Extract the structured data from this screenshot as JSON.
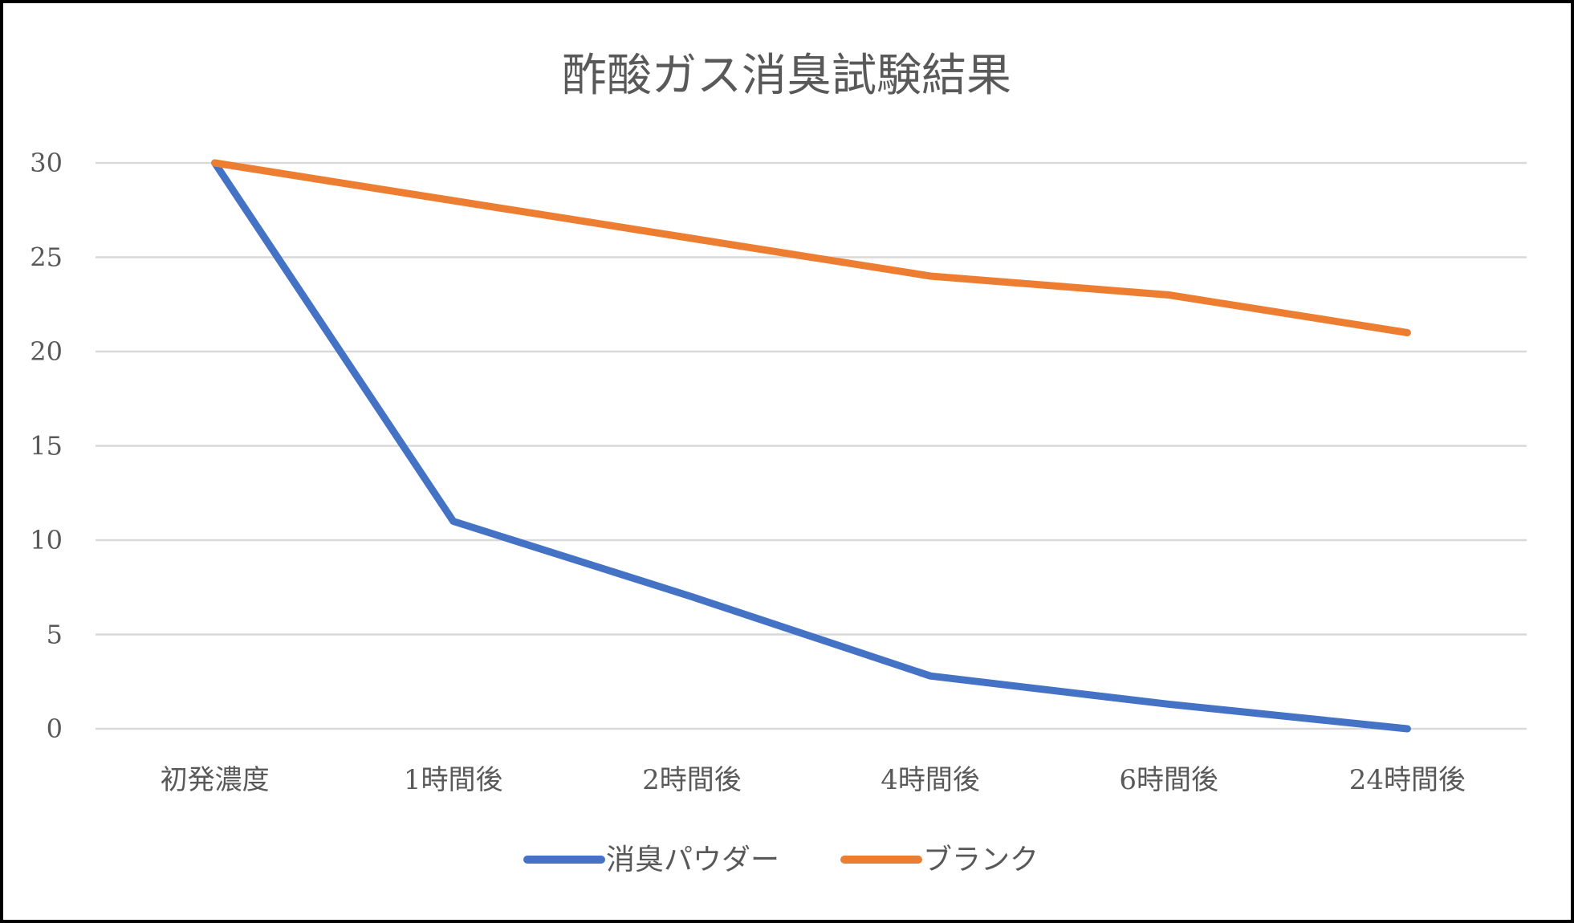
{
  "chart_data": {
    "type": "line",
    "title": "酢酸ガス消臭試験結果",
    "xlabel": "",
    "ylabel": "",
    "categories": [
      "初発濃度",
      "1時間後",
      "2時間後",
      "4時間後",
      "6時間後",
      "24時間後"
    ],
    "series": [
      {
        "name": "消臭パウダー",
        "color": "#4472C4",
        "values": [
          30,
          11,
          7,
          2.8,
          1.3,
          0
        ]
      },
      {
        "name": "ブランク",
        "color": "#ED7D31",
        "values": [
          30,
          28,
          26,
          24,
          23,
          21
        ]
      }
    ],
    "ylim": [
      0,
      30
    ],
    "yticks": [
      0,
      5,
      10,
      15,
      20,
      25,
      30
    ],
    "grid": true,
    "legend": "bottom"
  }
}
